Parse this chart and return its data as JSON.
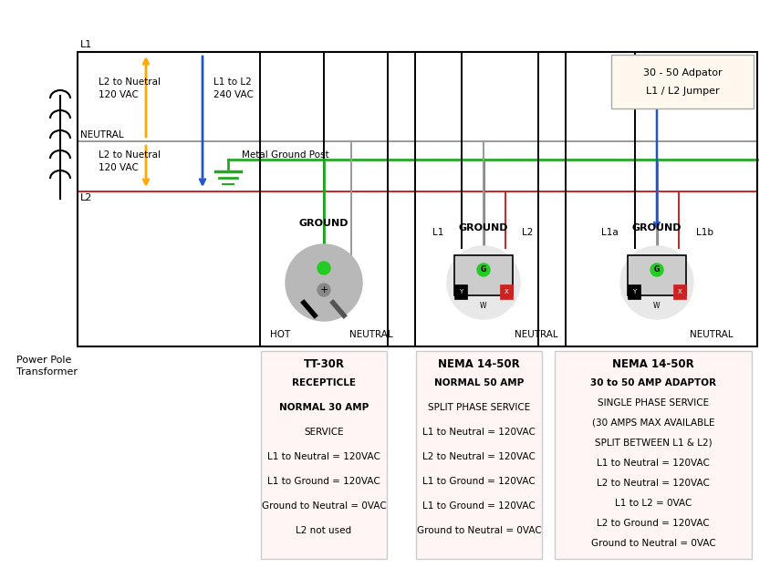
{
  "bg_color": "#ffffff",
  "box_bg": "#fff5f5",
  "transformer_label1": "Power Pole",
  "transformer_label2": "Transformer",
  "adaptor_text1": "30 - 50 Adpator",
  "adaptor_text2": "L1 / L2 Jumper",
  "plug1_title": "TT-30R",
  "plug1_texts": [
    "RECEPTICLE",
    "NORMAL 30 AMP",
    "SERVICE",
    "L1 to Neutral = 120VAC",
    "L1 to Ground = 120VAC",
    "Ground to Neutral = 0VAC",
    "L2 not used"
  ],
  "plug1_bold": [
    true,
    true,
    false,
    false,
    false,
    false,
    false
  ],
  "plug2_title": "NEMA 14-50R",
  "plug2_texts": [
    "NORMAL 50 AMP",
    "SPLIT PHASE SERVICE",
    "L1 to Neutral = 120VAC",
    "L2 to Neutral = 120VAC",
    "L1 to Ground = 120VAC",
    "L1 to Ground = 120VAC",
    "Ground to Neutral = 0VAC"
  ],
  "plug2_bold": [
    true,
    false,
    false,
    false,
    false,
    false,
    false
  ],
  "plug3_title": "NEMA 14-50R",
  "plug3_texts": [
    "30 to 50 AMP ADAPTOR",
    "SINGLE PHASE SERVICE",
    "(30 AMPS MAX AVAILABLE",
    "SPLIT BETWEEN L1 & L2)",
    "L1 to Neutral = 120VAC",
    "L2 to Neutral = 120VAC",
    "L1 to L2 = 0VAC",
    "L2 to Ground = 120VAC",
    "Ground to Neutral = 0VAC"
  ],
  "plug3_bold": [
    true,
    false,
    false,
    false,
    false,
    false,
    false,
    false,
    false
  ]
}
